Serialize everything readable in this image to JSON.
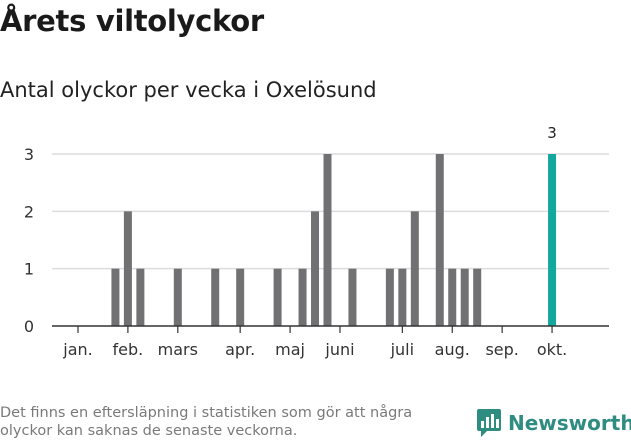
{
  "title": "Årets viltolyckor",
  "subtitle": "Antal olyckor per vecka i Oxelösund",
  "footnote": "Det finns en eftersläpning i statistiken som gör att några olyckor kan saknas de senaste veckorna.",
  "brand": {
    "name": "Newsworthy",
    "logo_icon": "newsworthy-chart-logo-icon",
    "color": "#2e8c80"
  },
  "chart_data": {
    "type": "bar",
    "x_unit": "week",
    "x": [
      2,
      3,
      4,
      5,
      6,
      7,
      8,
      9,
      10,
      11,
      12,
      13,
      14,
      15,
      16,
      17,
      18,
      19,
      20,
      21,
      22,
      23,
      24,
      25,
      26,
      27,
      28,
      29,
      30,
      31,
      32,
      33,
      34,
      35,
      36,
      37,
      38,
      39,
      40,
      41,
      42
    ],
    "values": [
      0,
      0,
      0,
      1,
      2,
      1,
      0,
      0,
      1,
      0,
      0,
      1,
      0,
      1,
      0,
      0,
      1,
      0,
      1,
      2,
      3,
      0,
      1,
      0,
      0,
      1,
      1,
      2,
      0,
      3,
      1,
      1,
      1,
      0,
      0,
      0,
      0,
      0,
      3,
      0,
      0
    ],
    "highlight": {
      "x": 40,
      "value": 3,
      "label": "3",
      "color": "#13a89e"
    },
    "bar_color": "#717073",
    "month_labels": [
      {
        "label": "jan.",
        "week": 2
      },
      {
        "label": "feb.",
        "week": 6
      },
      {
        "label": "mars",
        "week": 10
      },
      {
        "label": "apr.",
        "week": 15
      },
      {
        "label": "maj",
        "week": 19
      },
      {
        "label": "juni",
        "week": 23
      },
      {
        "label": "juli",
        "week": 28
      },
      {
        "label": "aug.",
        "week": 32
      },
      {
        "label": "sep.",
        "week": 36
      },
      {
        "label": "okt.",
        "week": 40
      }
    ],
    "yticks": [
      0,
      1,
      2,
      3
    ],
    "ylim": [
      0,
      3
    ],
    "xlabel": "",
    "ylabel": "",
    "grid": true,
    "legend": false
  }
}
